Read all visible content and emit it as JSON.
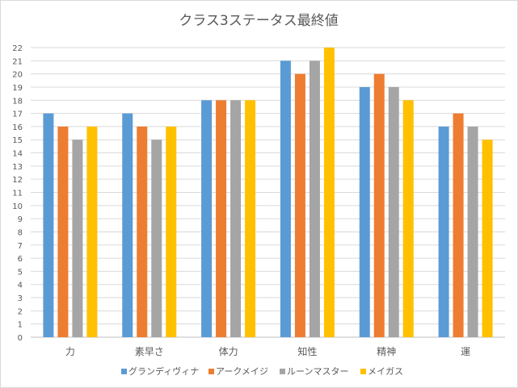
{
  "chart_data": {
    "type": "bar",
    "title": "クラス3ステータス最終値",
    "xlabel": "",
    "ylabel": "",
    "ylim": [
      0,
      22
    ],
    "ytick_step": 1,
    "grid": true,
    "legend_position": "bottom",
    "categories": [
      "力",
      "素早さ",
      "体力",
      "知性",
      "精神",
      "運"
    ],
    "series": [
      {
        "name": "グランディヴィナ",
        "color": "#5B9BD5",
        "values": [
          17,
          17,
          18,
          21,
          19,
          16
        ]
      },
      {
        "name": "アークメイジ",
        "color": "#ED7D31",
        "values": [
          16,
          16,
          18,
          20,
          20,
          17
        ]
      },
      {
        "name": "ルーンマスター",
        "color": "#A5A5A5",
        "values": [
          15,
          15,
          18,
          21,
          19,
          16
        ]
      },
      {
        "name": "メイガス",
        "color": "#FFC000",
        "values": [
          16,
          16,
          18,
          22,
          18,
          15
        ]
      }
    ]
  }
}
